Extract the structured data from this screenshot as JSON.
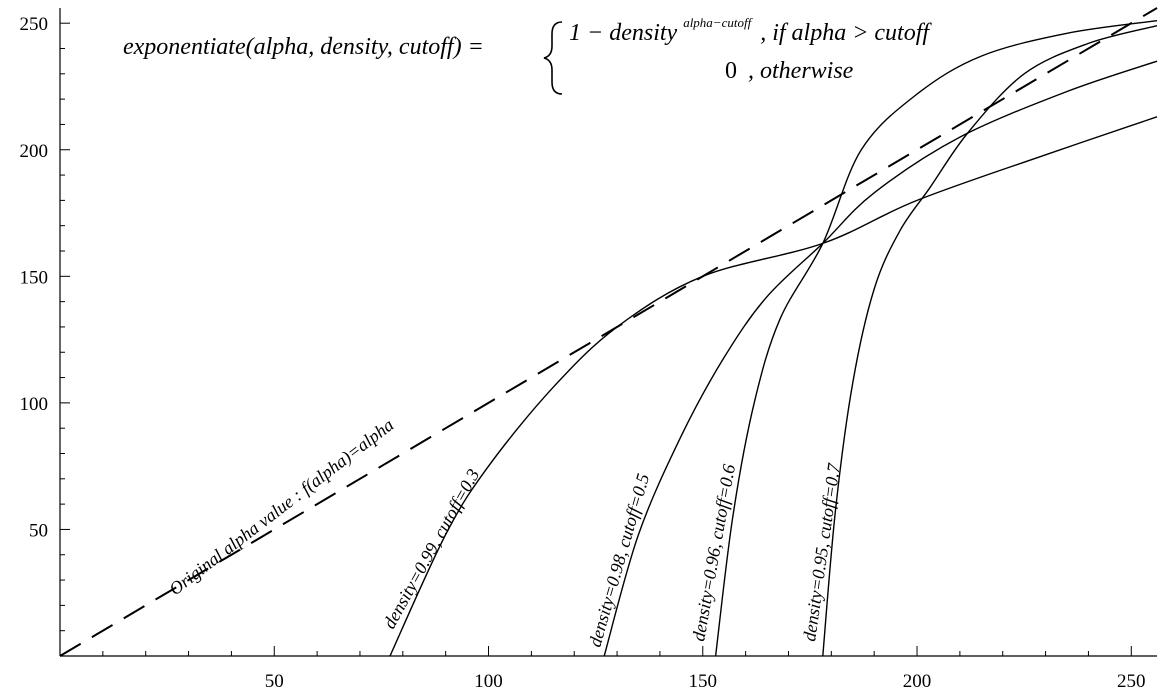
{
  "chart_data": {
    "type": "line",
    "title": "",
    "xlabel": "",
    "ylabel": "",
    "xlim": [
      0,
      256
    ],
    "ylim": [
      0,
      256
    ],
    "x_ticks": [
      50,
      100,
      150,
      200,
      250
    ],
    "y_ticks": [
      50,
      100,
      150,
      200,
      250
    ],
    "grid": false,
    "equation": {
      "lhs": "exponentiate(alpha, density, cutoff) =",
      "case1_prefix": "1 − density",
      "case1_exponent": "alpha−cutoff",
      "case1_suffix": ", if alpha > cutoff",
      "case2_value": "0",
      "case2_suffix": ", otherwise"
    },
    "series": [
      {
        "name": "Original alpha value : f(alpha)=alpha",
        "style": "dashed",
        "x": [
          0,
          256
        ],
        "y": [
          0,
          256
        ]
      },
      {
        "name": "density=0.99, cutoff=0.3",
        "style": "solid",
        "x": [
          77,
          90,
          100,
          115,
          130,
          150,
          178,
          200,
          230,
          256
        ],
        "y": [
          0,
          48,
          75,
          106,
          130,
          150,
          163,
          180,
          198,
          213
        ]
      },
      {
        "name": "density=0.98, cutoff=0.5",
        "style": "solid",
        "x": [
          127,
          135,
          145,
          155,
          165,
          178,
          190,
          210,
          235,
          256
        ],
        "y": [
          0,
          48,
          87,
          118,
          142,
          163,
          183,
          205,
          223,
          235
        ]
      },
      {
        "name": "density=0.96, cutoff=0.6",
        "style": "solid",
        "x": [
          153,
          157,
          162,
          168,
          178,
          187,
          200,
          215,
          235,
          256
        ],
        "y": [
          0,
          55,
          100,
          133,
          163,
          200,
          222,
          237,
          246,
          251
        ]
      },
      {
        "name": "density=0.95, cutoff=0.7",
        "style": "solid",
        "x": [
          178,
          181,
          185,
          190,
          196,
          203,
          212,
          225,
          240,
          256
        ],
        "y": [
          0,
          58,
          108,
          145,
          168,
          185,
          207,
          230,
          242,
          249
        ]
      }
    ]
  }
}
